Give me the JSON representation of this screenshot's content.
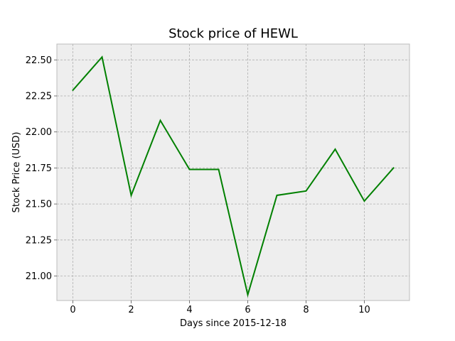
{
  "chart_data": {
    "type": "line",
    "title": "Stock price of HEWL",
    "xlabel": "Days since 2015-12-18",
    "ylabel": "Stock Price (USD)",
    "x": [
      0,
      1,
      2,
      3,
      4,
      5,
      6,
      7,
      8,
      9,
      10,
      11
    ],
    "series": [
      {
        "values": [
          22.29,
          22.52,
          21.56,
          22.08,
          21.74,
          21.74,
          20.87,
          21.56,
          21.59,
          21.88,
          21.52,
          21.75
        ],
        "color": "#008000"
      }
    ],
    "xlim": [
      -0.55,
      11.55
    ],
    "ylim": [
      20.83,
      22.61
    ],
    "xticks": [
      0,
      2,
      4,
      6,
      8,
      10
    ],
    "xtick_labels": [
      "0",
      "2",
      "4",
      "6",
      "8",
      "10"
    ],
    "yticks": [
      21.0,
      21.25,
      21.5,
      21.75,
      22.0,
      22.25,
      22.5
    ],
    "ytick_labels": [
      "21.00",
      "21.25",
      "21.50",
      "21.75",
      "22.00",
      "22.25",
      "22.50"
    ],
    "grid": true,
    "background_color": "#eeeeee"
  }
}
